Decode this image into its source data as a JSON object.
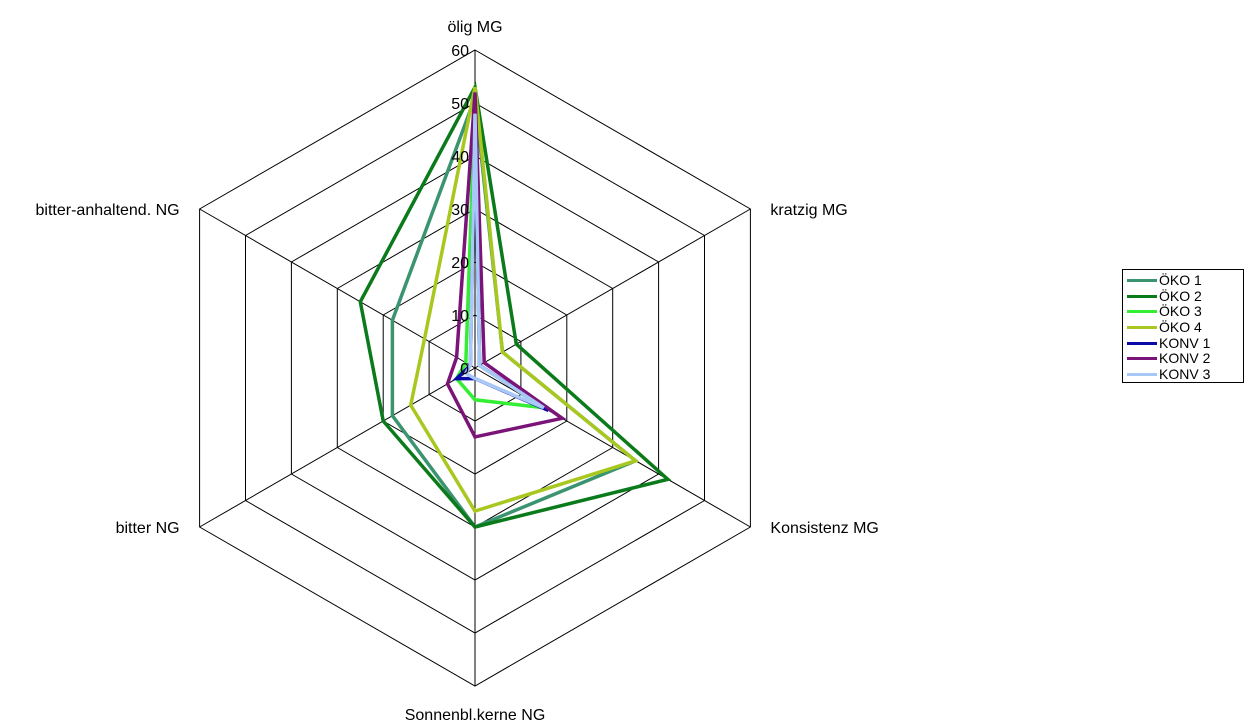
{
  "chart_data": {
    "type": "radar",
    "axes": [
      "ölig MG",
      "kratzig MG",
      "Konsistenz MG",
      "Sonnenbl.kerne NG",
      "bitter NG",
      "bitter-anhaltend. NG"
    ],
    "ticks": [
      "0",
      "10",
      "20",
      "30",
      "40",
      "50",
      "60"
    ],
    "rlim": [
      0,
      60
    ],
    "series": [
      {
        "name": "ÖKO 1",
        "color": "#3a9470",
        "values": [
          51,
          6,
          35,
          30,
          18,
          18
        ]
      },
      {
        "name": "ÖKO 2",
        "color": "#0b7a1a",
        "values": [
          53,
          9,
          42,
          30,
          20,
          25
        ]
      },
      {
        "name": "ÖKO 3",
        "color": "#33ee33",
        "values": [
          50,
          1,
          15,
          6,
          4,
          2
        ]
      },
      {
        "name": "ÖKO 4",
        "color": "#a8c820",
        "values": [
          53,
          6,
          35,
          27,
          14,
          11
        ]
      },
      {
        "name": "KONV 1",
        "color": "#0a0aa8",
        "values": [
          48,
          1,
          16,
          2,
          4,
          1
        ]
      },
      {
        "name": "KONV 2",
        "color": "#7a1478",
        "values": [
          52,
          2,
          19,
          13,
          6,
          4
        ]
      },
      {
        "name": "KONV 3",
        "color": "#a8c8f8",
        "values": [
          48,
          1,
          15,
          2,
          2,
          1
        ]
      }
    ],
    "legend_position": "right"
  }
}
